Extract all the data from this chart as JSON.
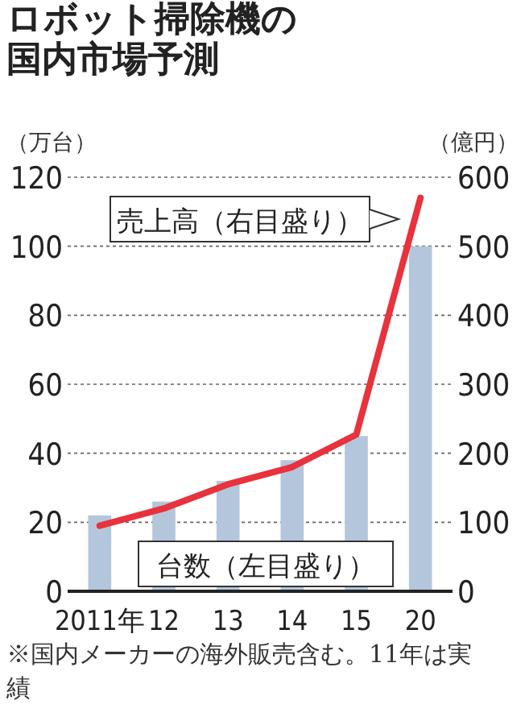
{
  "chart_data": {
    "type": "bar",
    "title": "ロボット掃除機の国内市場予測",
    "ylabel": "（万台）",
    "y2label": "（億円）",
    "categories": [
      "2011年",
      "12",
      "13",
      "14",
      "15",
      "20"
    ],
    "series": [
      {
        "name": "台数（左目盛り）",
        "color": "#b4c6dc",
        "values": [
          22,
          26,
          32,
          38,
          45,
          100
        ]
      },
      {
        "name": "売上高（右目盛り）",
        "type": "line",
        "axis": "y2",
        "color": "#e8323c",
        "values": [
          95,
          120,
          155,
          180,
          227,
          570
        ]
      }
    ],
    "ylim": [
      0,
      120
    ],
    "yticks": [
      0,
      20,
      40,
      60,
      80,
      100,
      120
    ],
    "y2lim": [
      0,
      600
    ],
    "y2ticks": [
      0,
      100,
      200,
      300,
      400,
      500,
      600
    ],
    "grid": "y",
    "annotations": [
      "※国内メーカーの海外販売含む。11年は実績"
    ]
  }
}
